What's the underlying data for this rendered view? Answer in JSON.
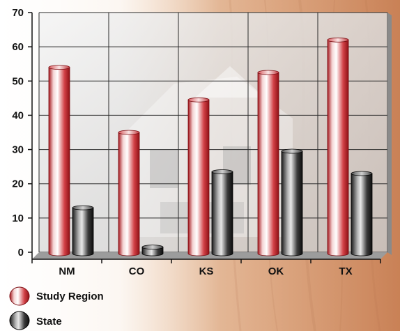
{
  "chart_data": {
    "type": "bar",
    "categories": [
      "NM",
      "CO",
      "KS",
      "OK",
      "TX"
    ],
    "series": [
      {
        "name": "Study Region",
        "values": [
          54,
          35,
          44.5,
          52.5,
          62
        ],
        "color": "#c0282d"
      },
      {
        "name": "State",
        "values": [
          13,
          1.5,
          23.5,
          29.5,
          23
        ],
        "color": "#2a2a2a"
      }
    ],
    "ylim": [
      0,
      70
    ],
    "yticks": [
      0,
      10,
      20,
      30,
      40,
      50,
      60,
      70
    ],
    "grid": true,
    "legend_position": "bottom-left",
    "title": "",
    "xlabel": "",
    "ylabel": ""
  }
}
